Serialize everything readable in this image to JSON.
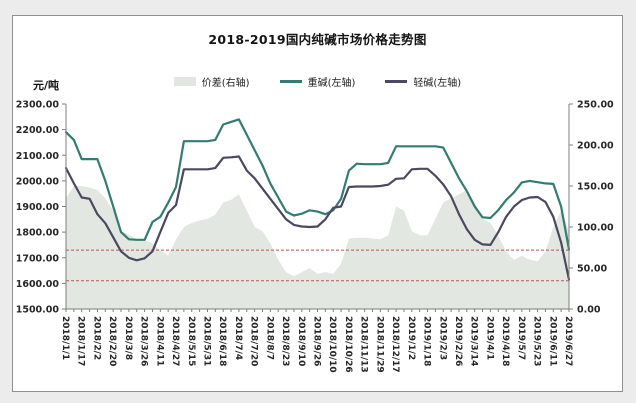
{
  "panel": {
    "title": "2018-2019国内纯碱市场价格走势图",
    "y_axis_unit": "元/吨"
  },
  "legend": {
    "items": [
      {
        "label": "价差(右轴)",
        "type": "area",
        "color": "#e3e7e2"
      },
      {
        "label": "重碱(左轴)",
        "type": "line",
        "color": "#347c73"
      },
      {
        "label": "轻碱(左轴)",
        "type": "line",
        "color": "#4b4961"
      }
    ]
  },
  "chart_data": {
    "type": "line+area",
    "title": "2018-2019国内纯碱市场价格走势图",
    "ylabel_left": "元/吨",
    "x_labels": [
      "2018/1/1",
      "2018/1/17",
      "2018/2/2",
      "2018/2/20",
      "2018/3/8",
      "2018/3/26",
      "2018/4/11",
      "2018/4/27",
      "2018/5/15",
      "2018/5/31",
      "2018/6/18",
      "2018/7/4",
      "2018/7/20",
      "2018/8/7",
      "2018/8/23",
      "2018/9/10",
      "2018/9/26",
      "2018/10/10",
      "2018/10/26",
      "2018/11/13",
      "2018/11/29",
      "2018/12/17",
      "2019/1/2",
      "2019/1/18",
      "2019/2/3",
      "2019/2/26",
      "2019/3/14",
      "2019/4/1",
      "2019/4/18",
      "2019/5/7",
      "2019/5/23",
      "2019/6/11",
      "2019/6/27"
    ],
    "points_per_label_interval": 2,
    "left_axis": {
      "min": 1500,
      "max": 2300,
      "step": 100
    },
    "right_axis": {
      "min": 0,
      "max": 250,
      "step": 50
    },
    "grid": false,
    "legend_position": "top-center",
    "axis_color": "#7f7f7f",
    "series": [
      {
        "id": "spread",
        "name": "价差(右轴)",
        "axis": "right",
        "type": "area",
        "color": "#e3e7e2",
        "values": [
          135,
          150,
          150,
          148,
          145,
          135,
          120,
          95,
          91,
          85,
          84,
          80,
          72,
          65,
          85,
          100,
          105,
          108,
          110,
          115,
          130,
          133,
          140,
          120,
          100,
          95,
          80,
          60,
          45,
          40,
          45,
          50,
          43,
          45,
          43,
          55,
          86,
          87,
          87,
          86,
          85,
          90,
          125,
          120,
          95,
          90,
          90,
          110,
          130,
          135,
          140,
          145,
          130,
          110,
          105,
          90,
          70,
          60,
          65,
          60,
          58,
          70,
          100,
          120,
          95
        ]
      },
      {
        "id": "heavy-soda",
        "name": "重碱(左轴)",
        "axis": "left",
        "type": "line",
        "color": "#347c73",
        "values": [
          2190,
          2160,
          2085,
          2085,
          2085,
          2000,
          1900,
          1800,
          1772,
          1770,
          1770,
          1840,
          1860,
          1915,
          1976,
          2155,
          2155,
          2155,
          2155,
          2160,
          2220,
          2230,
          2240,
          2180,
          2120,
          2060,
          1990,
          1935,
          1880,
          1865,
          1872,
          1885,
          1880,
          1870,
          1885,
          1930,
          2040,
          2067,
          2065,
          2065,
          2065,
          2070,
          2135,
          2135,
          2135,
          2135,
          2135,
          2135,
          2130,
          2070,
          2010,
          1960,
          1900,
          1858,
          1855,
          1886,
          1925,
          1955,
          1994,
          2000,
          1995,
          1990,
          1988,
          1900,
          1732
        ]
      },
      {
        "id": "light-soda",
        "name": "轻碱(左轴)",
        "axis": "left",
        "type": "line",
        "color": "#4b4961",
        "values": [
          2050,
          1990,
          1935,
          1930,
          1870,
          1835,
          1780,
          1725,
          1700,
          1690,
          1698,
          1725,
          1800,
          1875,
          1906,
          2045,
          2045,
          2045,
          2045,
          2050,
          2090,
          2092,
          2095,
          2040,
          2010,
          1970,
          1930,
          1890,
          1850,
          1828,
          1822,
          1820,
          1822,
          1850,
          1895,
          1900,
          1976,
          1978,
          1978,
          1978,
          1980,
          1985,
          2008,
          2010,
          2045,
          2047,
          2047,
          2020,
          1986,
          1940,
          1870,
          1812,
          1770,
          1752,
          1750,
          1800,
          1860,
          1900,
          1925,
          1935,
          1937,
          1918,
          1860,
          1760,
          1615
        ]
      }
    ],
    "reference_lines": [
      {
        "value": 1730,
        "axis": "left",
        "color": "#c0504d",
        "style": "dashed"
      },
      {
        "value": 1610,
        "axis": "left",
        "color": "#c0504d",
        "style": "dashed"
      }
    ]
  }
}
